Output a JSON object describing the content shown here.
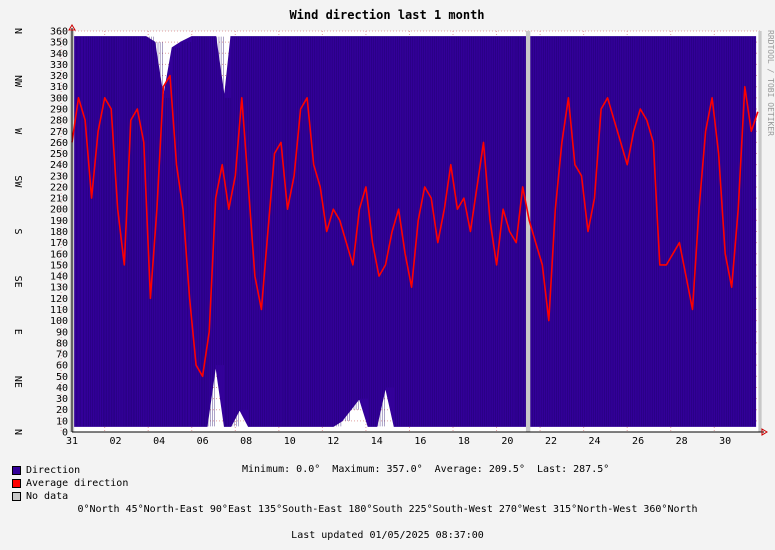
{
  "chart_data": {
    "type": "line",
    "title": "Wind direction last 1 month",
    "side_text": "RRDTOOL / TOBI OETIKER",
    "ylim": [
      0,
      360
    ],
    "y_ticks": [
      0,
      10,
      20,
      30,
      40,
      50,
      60,
      70,
      80,
      90,
      100,
      110,
      120,
      130,
      140,
      150,
      160,
      170,
      180,
      190,
      200,
      210,
      220,
      230,
      240,
      250,
      260,
      270,
      280,
      290,
      300,
      310,
      320,
      330,
      340,
      350,
      360
    ],
    "compass_labels": [
      {
        "label": "N",
        "value": 0
      },
      {
        "label": "NE",
        "value": 45
      },
      {
        "label": "E",
        "value": 90
      },
      {
        "label": "SE",
        "value": 135
      },
      {
        "label": "S",
        "value": 180
      },
      {
        "label": "SW",
        "value": 225
      },
      {
        "label": "W",
        "value": 270
      },
      {
        "label": "NW",
        "value": 315
      },
      {
        "label": "N",
        "value": 360
      }
    ],
    "x_labels": [
      "31",
      "02",
      "04",
      "06",
      "08",
      "10",
      "12",
      "14",
      "16",
      "18",
      "20",
      "22",
      "24",
      "26",
      "28",
      "30"
    ],
    "x_range_days": [
      0,
      31.6
    ],
    "x_label_days": [
      0,
      2,
      4,
      6,
      8,
      10,
      12,
      14,
      16,
      18,
      20,
      22,
      24,
      26,
      28,
      30
    ],
    "series": [
      {
        "name": "Direction",
        "color": "#330099",
        "style": "band",
        "x": [
          0,
          0.6,
          1,
          1.4,
          1.7,
          2,
          2.4,
          2.7,
          3,
          3.4,
          3.8,
          4.2,
          4.6,
          5,
          5.5,
          5.9,
          6.2,
          6.6,
          7,
          7.3,
          7.7,
          8.1,
          8.5,
          8.9,
          9.3,
          9.7,
          10,
          10.4,
          10.8,
          11.2,
          11.6,
          12,
          12.4,
          12.8,
          13.2,
          13.6,
          14,
          14.4,
          14.8,
          15.2,
          15.6,
          16,
          16.4,
          16.8,
          17.2,
          17.6,
          18,
          18.4,
          18.8,
          19.2,
          19.6,
          20,
          20.4,
          20.7,
          21,
          21.4,
          21.8,
          22.2,
          22.6,
          23,
          23.4,
          23.8,
          24.2,
          24.6,
          25,
          25.4,
          25.8,
          26.2,
          26.6,
          27,
          27.4,
          27.8,
          28.2,
          28.6,
          29,
          29.4,
          29.8,
          30.2,
          30.6,
          31,
          31.4
        ],
        "low": [
          5,
          5,
          5,
          5,
          5,
          5,
          5,
          5,
          5,
          5,
          5,
          5,
          5,
          5,
          5,
          5,
          5,
          60,
          5,
          5,
          20,
          5,
          5,
          5,
          5,
          5,
          5,
          5,
          5,
          5,
          5,
          5,
          10,
          20,
          30,
          5,
          5,
          40,
          5,
          5,
          5,
          5,
          5,
          5,
          5,
          5,
          5,
          5,
          5,
          5,
          5,
          5,
          5,
          5,
          5,
          5,
          5,
          5,
          5,
          5,
          5,
          5,
          5,
          5,
          5,
          5,
          5,
          5,
          5,
          5,
          5,
          5,
          5,
          5,
          5,
          5,
          5,
          5,
          5,
          5,
          5
        ],
        "high": [
          355,
          355,
          355,
          355,
          355,
          355,
          355,
          355,
          355,
          355,
          350,
          300,
          345,
          350,
          355,
          355,
          355,
          355,
          300,
          355,
          355,
          355,
          355,
          355,
          355,
          355,
          355,
          355,
          355,
          355,
          355,
          355,
          355,
          355,
          355,
          355,
          355,
          355,
          355,
          355,
          355,
          355,
          355,
          355,
          355,
          355,
          355,
          355,
          355,
          355,
          355,
          355,
          355,
          355,
          355,
          355,
          355,
          355,
          355,
          355,
          355,
          355,
          355,
          355,
          355,
          355,
          355,
          355,
          355,
          355,
          355,
          355,
          355,
          355,
          355,
          355,
          355,
          355,
          355,
          355,
          355
        ]
      },
      {
        "name": "Average direction",
        "color": "#ff0000",
        "style": "line",
        "x": [
          0,
          0.3,
          0.6,
          0.9,
          1.2,
          1.5,
          1.8,
          2.1,
          2.4,
          2.7,
          3,
          3.3,
          3.6,
          3.9,
          4.2,
          4.5,
          4.8,
          5.1,
          5.4,
          5.7,
          6,
          6.3,
          6.6,
          6.9,
          7.2,
          7.5,
          7.8,
          8.1,
          8.4,
          8.7,
          9,
          9.3,
          9.6,
          9.9,
          10.2,
          10.5,
          10.8,
          11.1,
          11.4,
          11.7,
          12,
          12.3,
          12.6,
          12.9,
          13.2,
          13.5,
          13.8,
          14.1,
          14.4,
          14.7,
          15,
          15.3,
          15.6,
          15.9,
          16.2,
          16.5,
          16.8,
          17.1,
          17.4,
          17.7,
          18,
          18.3,
          18.6,
          18.9,
          19.2,
          19.5,
          19.8,
          20.1,
          20.4,
          20.7,
          21,
          21.3,
          21.6,
          21.9,
          22.2,
          22.5,
          22.8,
          23.1,
          23.4,
          23.7,
          24,
          24.3,
          24.6,
          24.9,
          25.2,
          25.5,
          25.8,
          26.1,
          26.4,
          26.7,
          27,
          27.3,
          27.6,
          27.9,
          28.2,
          28.5,
          28.8,
          29.1,
          29.4,
          29.7,
          30,
          30.3,
          30.6,
          30.9,
          31.2,
          31.5
        ],
        "values": [
          260,
          300,
          280,
          210,
          270,
          300,
          290,
          200,
          150,
          280,
          290,
          260,
          120,
          200,
          310,
          320,
          240,
          200,
          120,
          60,
          50,
          90,
          210,
          240,
          200,
          230,
          300,
          220,
          140,
          110,
          180,
          250,
          260,
          200,
          230,
          290,
          300,
          240,
          220,
          180,
          200,
          190,
          170,
          150,
          200,
          220,
          170,
          140,
          150,
          180,
          200,
          160,
          130,
          190,
          220,
          210,
          170,
          200,
          240,
          200,
          210,
          180,
          220,
          260,
          190,
          150,
          200,
          180,
          170,
          220,
          190,
          170,
          150,
          100,
          200,
          260,
          300,
          240,
          230,
          180,
          210,
          290,
          300,
          280,
          260,
          240,
          270,
          290,
          280,
          260,
          150,
          150,
          160,
          170,
          140,
          110,
          200,
          270,
          300,
          250,
          160,
          130,
          200,
          310,
          270,
          287.5
        ]
      },
      {
        "name": "No data",
        "color": "#c8c8c8",
        "style": "gap",
        "x": [
          0,
          20.95,
          31.6
        ],
        "width_days": [
          0.2,
          0.2,
          0.15
        ]
      }
    ]
  },
  "legend": [
    {
      "label": "Direction",
      "color": "#330099"
    },
    {
      "label": "Average direction",
      "color": "#ff0000"
    },
    {
      "label": "No data",
      "color": "#c8c8c8"
    }
  ],
  "stats": {
    "text": "Minimum: 0.0°  Maximum: 357.0°  Average: 209.5°  Last: 287.5°"
  },
  "directions_key": "0°North 45°North-East 90°East 135°South-East 180°South 225°South-West 270°West 315°North-West 360°North",
  "last_updated": "Last updated 01/05/2025 08:37:00"
}
